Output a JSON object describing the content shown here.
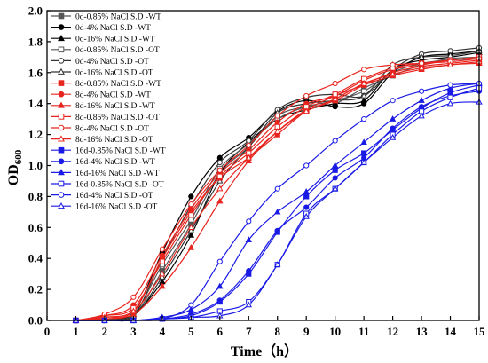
{
  "chart_data": {
    "type": "line",
    "xlabel": "Time（h）",
    "ylabel_main": "OD",
    "ylabel_sub": "600",
    "xlim": [
      0,
      15
    ],
    "ylim": [
      0,
      2.0
    ],
    "xticks": [
      0,
      1,
      2,
      3,
      4,
      5,
      6,
      7,
      8,
      9,
      10,
      11,
      12,
      13,
      14,
      15
    ],
    "yticks": [
      "0.0",
      "0.2",
      "0.4",
      "0.6",
      "0.8",
      "1.0",
      "1.2",
      "1.4",
      "1.6",
      "1.8",
      "2.0"
    ],
    "grid": false,
    "legend_position": "top-left",
    "x": [
      1,
      2,
      3,
      4,
      5,
      6,
      7,
      8,
      9,
      10,
      11,
      12,
      13,
      14,
      15
    ],
    "series": [
      {
        "name": "0d-0.85% NaCl S.D -WT",
        "color": "#555555",
        "marker": "square-filled",
        "values": [
          0.0,
          0.01,
          0.03,
          0.32,
          0.62,
          0.95,
          1.12,
          1.32,
          1.38,
          1.4,
          1.5,
          1.58,
          1.65,
          1.69,
          1.7
        ]
      },
      {
        "name": "0d-4% NaCl S.D -WT",
        "color": "#000000",
        "marker": "circle-filled",
        "values": [
          0.0,
          0.01,
          0.05,
          0.44,
          0.8,
          1.05,
          1.18,
          1.35,
          1.42,
          1.38,
          1.4,
          1.6,
          1.7,
          1.72,
          1.74
        ]
      },
      {
        "name": "0d-16% NaCl S.D -WT",
        "color": "#000000",
        "marker": "triangle-filled",
        "values": [
          0.0,
          0.01,
          0.04,
          0.25,
          0.55,
          0.95,
          1.15,
          1.3,
          1.36,
          1.4,
          1.42,
          1.62,
          1.68,
          1.7,
          1.73
        ]
      },
      {
        "name": "0d-0.85% NaCl S.D -OT",
        "color": "#555555",
        "marker": "square-open",
        "values": [
          0.0,
          0.01,
          0.04,
          0.36,
          0.65,
          0.98,
          1.14,
          1.3,
          1.38,
          1.42,
          1.48,
          1.6,
          1.66,
          1.68,
          1.69
        ]
      },
      {
        "name": "0d-4% NaCl S.D -OT",
        "color": "#333333",
        "marker": "circle-open",
        "values": [
          0.0,
          0.01,
          0.03,
          0.4,
          0.74,
          1.02,
          1.16,
          1.36,
          1.44,
          1.46,
          1.45,
          1.62,
          1.72,
          1.74,
          1.76
        ]
      },
      {
        "name": "0d-16% NaCl S.D -OT",
        "color": "#333333",
        "marker": "triangle-open",
        "values": [
          0.0,
          0.01,
          0.03,
          0.28,
          0.58,
          0.9,
          1.12,
          1.34,
          1.4,
          1.42,
          1.45,
          1.65,
          1.7,
          1.71,
          1.74
        ]
      },
      {
        "name": "8d-0.85% NaCl S.D -WT",
        "color": "#e8241e",
        "marker": "square-filled",
        "values": [
          0.0,
          0.02,
          0.06,
          0.4,
          0.7,
          0.92,
          1.05,
          1.2,
          1.35,
          1.42,
          1.52,
          1.6,
          1.64,
          1.66,
          1.68
        ]
      },
      {
        "name": "8d-4% NaCl S.D -WT",
        "color": "#e8241e",
        "marker": "circle-filled",
        "values": [
          0.0,
          0.03,
          0.1,
          0.42,
          0.72,
          0.95,
          1.1,
          1.28,
          1.4,
          1.45,
          1.55,
          1.62,
          1.65,
          1.68,
          1.7
        ]
      },
      {
        "name": "8d-16% NaCl S.D -WT",
        "color": "#e8241e",
        "marker": "triangle-filled",
        "values": [
          0.0,
          0.01,
          0.04,
          0.22,
          0.47,
          0.77,
          1.03,
          1.22,
          1.36,
          1.45,
          1.52,
          1.58,
          1.62,
          1.65,
          1.66
        ]
      },
      {
        "name": "8d-0.85% NaCl S.D -OT",
        "color": "#e8241e",
        "marker": "square-open",
        "values": [
          0.0,
          0.03,
          0.08,
          0.38,
          0.68,
          0.93,
          1.08,
          1.25,
          1.38,
          1.46,
          1.56,
          1.63,
          1.66,
          1.68,
          1.7
        ]
      },
      {
        "name": "8d-4% NaCl S.D -OT",
        "color": "#e8241e",
        "marker": "circle-open",
        "values": [
          0.0,
          0.04,
          0.15,
          0.46,
          0.75,
          0.97,
          1.13,
          1.32,
          1.45,
          1.53,
          1.62,
          1.65,
          1.66,
          1.67,
          1.69
        ]
      },
      {
        "name": "8d-16% NaCl S.D -OT",
        "color": "#e8241e",
        "marker": "triangle-open",
        "values": [
          0.0,
          0.02,
          0.06,
          0.3,
          0.6,
          0.85,
          1.05,
          1.22,
          1.35,
          1.43,
          1.53,
          1.59,
          1.63,
          1.65,
          1.67
        ]
      },
      {
        "name": "16d-0.85% NaCl S.D -WT",
        "color": "#1a1ae6",
        "marker": "square-filled",
        "values": [
          0.0,
          0.0,
          0.0,
          0.01,
          0.03,
          0.12,
          0.3,
          0.57,
          0.8,
          0.97,
          1.08,
          1.23,
          1.37,
          1.47,
          1.52
        ]
      },
      {
        "name": "16d-4% NaCl S.D -WT",
        "color": "#1a1ae6",
        "marker": "circle-filled",
        "values": [
          0.0,
          0.0,
          0.0,
          0.01,
          0.04,
          0.13,
          0.32,
          0.58,
          0.73,
          0.92,
          1.05,
          1.24,
          1.38,
          1.45,
          1.48
        ]
      },
      {
        "name": "16d-16% NaCl S.D -WT",
        "color": "#1a1ae6",
        "marker": "triangle-filled",
        "values": [
          0.0,
          0.0,
          0.0,
          0.02,
          0.07,
          0.22,
          0.52,
          0.7,
          0.83,
          1.0,
          1.15,
          1.3,
          1.42,
          1.5,
          1.53
        ]
      },
      {
        "name": "16d-0.85% NaCl S.D -OT",
        "color": "#1a1ae6",
        "marker": "square-open",
        "values": [
          0.0,
          0.0,
          0.0,
          0.01,
          0.02,
          0.06,
          0.12,
          0.36,
          0.69,
          0.85,
          1.02,
          1.2,
          1.35,
          1.44,
          1.5
        ]
      },
      {
        "name": "16d-4% NaCl S.D -OT",
        "color": "#1a1ae6",
        "marker": "circle-open",
        "values": [
          0.0,
          0.0,
          0.0,
          0.01,
          0.1,
          0.38,
          0.64,
          0.85,
          1.0,
          1.16,
          1.3,
          1.42,
          1.48,
          1.52,
          1.53
        ]
      },
      {
        "name": "16d-16% NaCl S.D -OT",
        "color": "#1a1ae6",
        "marker": "triangle-open",
        "values": [
          0.0,
          0.0,
          0.0,
          0.01,
          0.02,
          0.03,
          0.1,
          0.36,
          0.67,
          0.85,
          1.02,
          1.18,
          1.32,
          1.4,
          1.41
        ]
      }
    ]
  }
}
